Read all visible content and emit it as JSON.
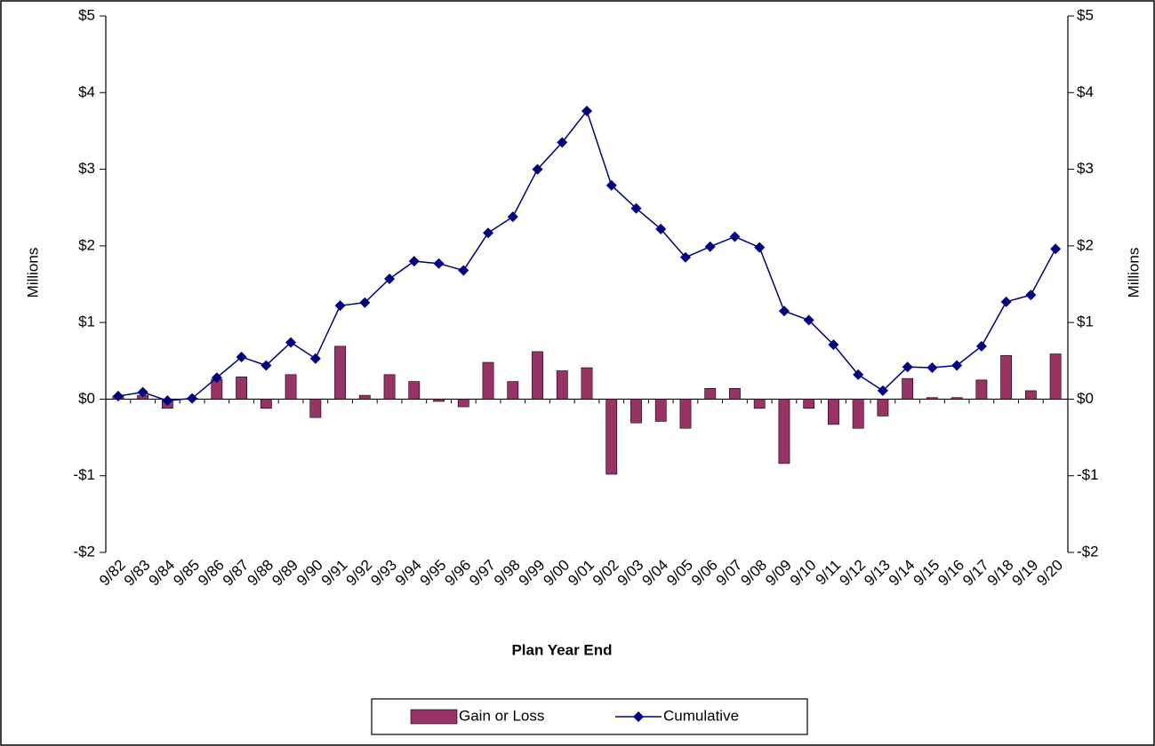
{
  "chart_data": {
    "type": "bar",
    "x_label": "Plan Year End",
    "y_label": "Millions",
    "y2_label": "Millions",
    "categories": [
      "9/82",
      "9/83",
      "9/84",
      "9/85",
      "9/86",
      "9/87",
      "9/88",
      "9/89",
      "9/90",
      "9/91",
      "9/92",
      "9/93",
      "9/94",
      "9/95",
      "9/96",
      "9/97",
      "9/98",
      "9/99",
      "9/00",
      "9/01",
      "9/02",
      "9/03",
      "9/04",
      "9/05",
      "9/06",
      "9/07",
      "9/08",
      "9/09",
      "9/10",
      "9/11",
      "9/12",
      "9/13",
      "9/14",
      "9/15",
      "9/16",
      "9/17",
      "9/18",
      "9/19",
      "9/20"
    ],
    "series": [
      {
        "name": "Gain or Loss",
        "type": "bar",
        "color": "#993366",
        "values": [
          0.04,
          0.05,
          -0.12,
          0.01,
          0.26,
          0.29,
          -0.12,
          0.32,
          -0.24,
          0.69,
          0.05,
          0.32,
          0.23,
          -0.03,
          -0.1,
          0.48,
          0.23,
          0.62,
          0.37,
          0.41,
          -0.98,
          -0.31,
          -0.29,
          -0.38,
          0.14,
          0.14,
          -0.12,
          -0.84,
          -0.12,
          -0.33,
          -0.38,
          -0.22,
          0.27,
          0.02,
          0.02,
          0.25,
          0.57,
          0.11,
          0.59
        ]
      },
      {
        "name": "Cumulative",
        "type": "line",
        "color": "#000080",
        "values": [
          0.04,
          0.09,
          -0.02,
          0.01,
          0.28,
          0.55,
          0.44,
          0.74,
          0.53,
          1.22,
          1.26,
          1.57,
          1.8,
          1.77,
          1.68,
          2.17,
          2.38,
          3.0,
          3.35,
          3.76,
          2.79,
          2.49,
          2.22,
          1.85,
          1.99,
          2.12,
          1.98,
          1.15,
          1.03,
          0.71,
          0.32,
          0.11,
          0.42,
          0.41,
          0.44,
          0.69,
          1.27,
          1.36,
          1.96
        ]
      }
    ],
    "ylim": [
      -2,
      5
    ],
    "yticks": [
      {
        "value": -2,
        "label": "-$2"
      },
      {
        "value": -1,
        "label": "-$1"
      },
      {
        "value": 0,
        "label": "$0"
      },
      {
        "value": 1,
        "label": "$1"
      },
      {
        "value": 2,
        "label": "$2"
      },
      {
        "value": 3,
        "label": "$3"
      },
      {
        "value": 4,
        "label": "$4"
      },
      {
        "value": 5,
        "label": "$5"
      }
    ],
    "y2lim": [
      -2,
      5
    ],
    "y2ticks": [
      {
        "value": -2,
        "label": "-$2"
      },
      {
        "value": -1,
        "label": "-$1"
      },
      {
        "value": 0,
        "label": "$0"
      },
      {
        "value": 1,
        "label": "$1"
      },
      {
        "value": 2,
        "label": "$2"
      },
      {
        "value": 3,
        "label": "$3"
      },
      {
        "value": 4,
        "label": "$4"
      },
      {
        "value": 5,
        "label": "$5"
      }
    ],
    "grid": false,
    "legend": "bottom"
  }
}
